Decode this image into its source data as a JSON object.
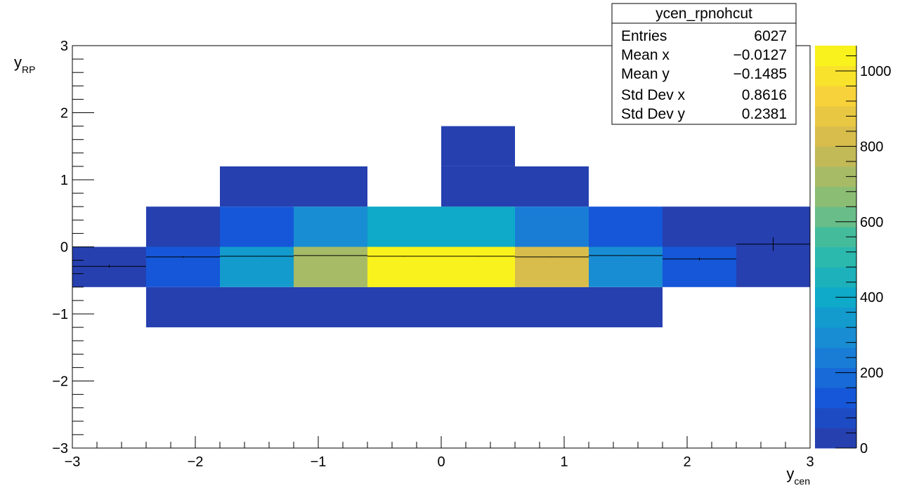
{
  "chart_data": {
    "type": "heatmap",
    "title": "",
    "xlabel": {
      "main": "y",
      "sub": "cen"
    },
    "ylabel": {
      "main": "y",
      "sub": "RP"
    },
    "xlim": [
      -3,
      3
    ],
    "ylim": [
      -3,
      3
    ],
    "x_ticks": [
      {
        "value": -3,
        "label": "−3"
      },
      {
        "value": -2,
        "label": "−2"
      },
      {
        "value": -1,
        "label": "−1"
      },
      {
        "value": 0,
        "label": "0"
      },
      {
        "value": 1,
        "label": "1"
      },
      {
        "value": 2,
        "label": "2"
      },
      {
        "value": 3,
        "label": "3"
      }
    ],
    "y_ticks": [
      {
        "value": -3,
        "label": "−3"
      },
      {
        "value": -2,
        "label": "−2"
      },
      {
        "value": -1,
        "label": "−1"
      },
      {
        "value": 0,
        "label": "0"
      },
      {
        "value": 1,
        "label": "1"
      },
      {
        "value": 2,
        "label": "2"
      },
      {
        "value": 3,
        "label": "3"
      }
    ],
    "x_bin_edges": [
      -3,
      -2.4,
      -1.8,
      -1.2,
      -0.6,
      0,
      0.6,
      1.2,
      1.8,
      2.4,
      3
    ],
    "y_bin_edges": [
      -3,
      -2.4,
      -1.8,
      -1.2,
      -0.6,
      0,
      0.6,
      1.2,
      1.8,
      2.4,
      3
    ],
    "cells": [
      {
        "x": [
          -3.0,
          -2.4
        ],
        "y": [
          -0.6,
          0.0
        ],
        "value": 15
      },
      {
        "x": [
          -2.4,
          -1.8
        ],
        "y": [
          -1.2,
          -0.6
        ],
        "value": 10
      },
      {
        "x": [
          -2.4,
          -1.8
        ],
        "y": [
          -0.6,
          0.0
        ],
        "value": 120
      },
      {
        "x": [
          -2.4,
          -1.8
        ],
        "y": [
          0.0,
          0.6
        ],
        "value": 20
      },
      {
        "x": [
          -1.8,
          -1.2
        ],
        "y": [
          -1.2,
          -0.6
        ],
        "value": 10
      },
      {
        "x": [
          -1.8,
          -1.2
        ],
        "y": [
          -0.6,
          0.0
        ],
        "value": 330
      },
      {
        "x": [
          -1.8,
          -1.2
        ],
        "y": [
          0.0,
          0.6
        ],
        "value": 140
      },
      {
        "x": [
          -1.8,
          -1.2
        ],
        "y": [
          0.6,
          1.2
        ],
        "value": 5
      },
      {
        "x": [
          -1.2,
          -0.6
        ],
        "y": [
          -1.2,
          -0.6
        ],
        "value": 10
      },
      {
        "x": [
          -1.2,
          -0.6
        ],
        "y": [
          -0.6,
          0.0
        ],
        "value": 720
      },
      {
        "x": [
          -1.2,
          -0.6
        ],
        "y": [
          0.0,
          0.6
        ],
        "value": 290
      },
      {
        "x": [
          -1.2,
          -0.6
        ],
        "y": [
          0.6,
          1.2
        ],
        "value": 5
      },
      {
        "x": [
          -0.6,
          0.0
        ],
        "y": [
          -1.2,
          -0.6
        ],
        "value": 10
      },
      {
        "x": [
          -0.6,
          0.0
        ],
        "y": [
          -0.6,
          0.0
        ],
        "value": 1060
      },
      {
        "x": [
          -0.6,
          0.0
        ],
        "y": [
          0.0,
          0.6
        ],
        "value": 390
      },
      {
        "x": [
          0.0,
          0.6
        ],
        "y": [
          -1.2,
          -0.6
        ],
        "value": 10
      },
      {
        "x": [
          0.0,
          0.6
        ],
        "y": [
          -0.6,
          0.0
        ],
        "value": 1060
      },
      {
        "x": [
          0.0,
          0.6
        ],
        "y": [
          0.0,
          0.6
        ],
        "value": 390
      },
      {
        "x": [
          0.0,
          0.6
        ],
        "y": [
          0.6,
          1.2
        ],
        "value": 5
      },
      {
        "x": [
          0.0,
          0.6
        ],
        "y": [
          1.2,
          1.8
        ],
        "value": 5
      },
      {
        "x": [
          0.6,
          1.2
        ],
        "y": [
          -1.2,
          -0.6
        ],
        "value": 10
      },
      {
        "x": [
          0.6,
          1.2
        ],
        "y": [
          -0.6,
          0.0
        ],
        "value": 830
      },
      {
        "x": [
          0.6,
          1.2
        ],
        "y": [
          0.0,
          0.6
        ],
        "value": 250
      },
      {
        "x": [
          0.6,
          1.2
        ],
        "y": [
          0.6,
          1.2
        ],
        "value": 5
      },
      {
        "x": [
          1.2,
          1.8
        ],
        "y": [
          -1.2,
          -0.6
        ],
        "value": 10
      },
      {
        "x": [
          1.2,
          1.8
        ],
        "y": [
          -0.6,
          0.0
        ],
        "value": 320
      },
      {
        "x": [
          1.2,
          1.8
        ],
        "y": [
          0.0,
          0.6
        ],
        "value": 110
      },
      {
        "x": [
          1.8,
          2.4
        ],
        "y": [
          -0.6,
          0.0
        ],
        "value": 110
      },
      {
        "x": [
          1.8,
          2.4
        ],
        "y": [
          0.0,
          0.6
        ],
        "value": 15
      },
      {
        "x": [
          2.4,
          3.0
        ],
        "y": [
          -0.6,
          0.0
        ],
        "value": 10
      },
      {
        "x": [
          2.4,
          3.0
        ],
        "y": [
          0.0,
          0.6
        ],
        "value": 5
      }
    ],
    "profile": [
      {
        "x": -2.7,
        "y": -0.29,
        "err": 0.02
      },
      {
        "x": -2.1,
        "y": -0.15,
        "err": 0.01
      },
      {
        "x": -1.5,
        "y": -0.14,
        "err": 0.005
      },
      {
        "x": -0.9,
        "y": -0.13,
        "err": 0.005
      },
      {
        "x": -0.3,
        "y": -0.14,
        "err": 0.005
      },
      {
        "x": 0.3,
        "y": -0.14,
        "err": 0.005
      },
      {
        "x": 0.9,
        "y": -0.15,
        "err": 0.005
      },
      {
        "x": 1.5,
        "y": -0.13,
        "err": 0.005
      },
      {
        "x": 2.1,
        "y": -0.18,
        "err": 0.02
      },
      {
        "x": 2.7,
        "y": 0.04,
        "err": 0.1
      }
    ],
    "color_scale": {
      "min": 0,
      "max": 1067,
      "ticks": [
        {
          "value": 0,
          "label": "0"
        },
        {
          "value": 200,
          "label": "200"
        },
        {
          "value": 400,
          "label": "400"
        },
        {
          "value": 600,
          "label": "600"
        },
        {
          "value": 800,
          "label": "800"
        },
        {
          "value": 1000,
          "label": "1000"
        }
      ],
      "stops": [
        "#2a3aa6",
        "#1557d8",
        "#1a86d6",
        "#0fa9c9",
        "#32bca6",
        "#8cbd74",
        "#d0b850",
        "#f8d23a",
        "#f9fa14"
      ]
    },
    "stats_box": {
      "title": "ycen_rpnohcut",
      "rows": [
        {
          "label": "Entries",
          "value": "6027"
        },
        {
          "label": "Mean x",
          "value": "−0.0127"
        },
        {
          "label": "Mean y",
          "value": "−0.1485"
        },
        {
          "label": "Std Dev x",
          "value": "0.8616"
        },
        {
          "label": "Std Dev y",
          "value": "0.2381"
        }
      ]
    },
    "grid": false,
    "legend": "none"
  }
}
